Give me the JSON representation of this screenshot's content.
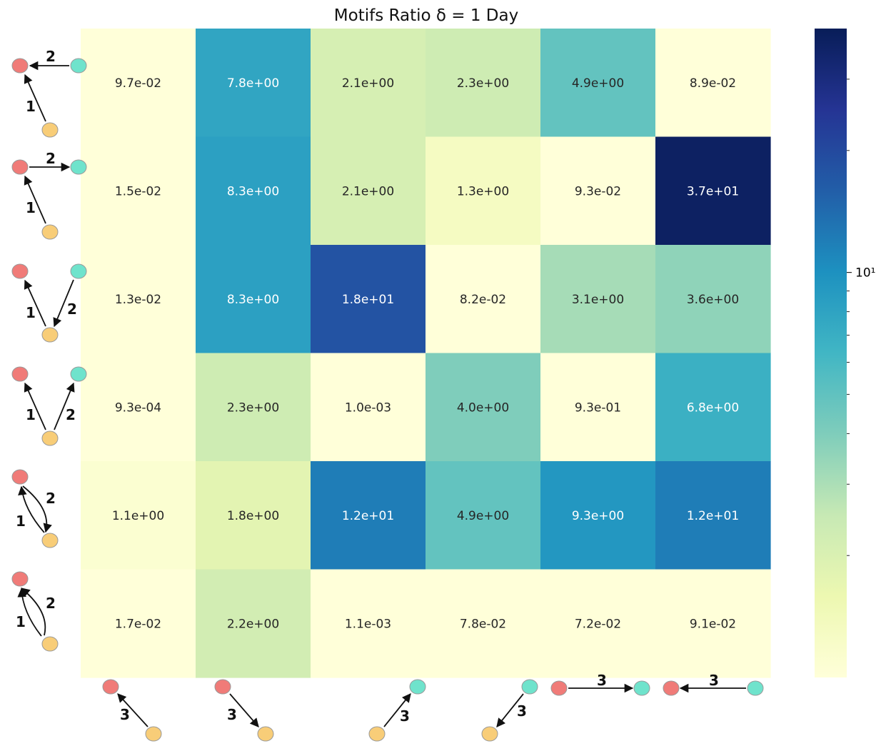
{
  "chart_data": {
    "type": "heatmap",
    "title": "Motifs Ratio  δ = 1 Day",
    "xlabel": "",
    "ylabel": "",
    "scale": "log",
    "colormap": "YlGnBu",
    "rows": 6,
    "cols": 6,
    "row_labels": [
      {
        "icon": "motif-diagram-icon",
        "edge_labels": [
          "2",
          "1"
        ]
      },
      {
        "icon": "motif-diagram-icon",
        "edge_labels": [
          "2",
          "1"
        ]
      },
      {
        "icon": "motif-diagram-icon",
        "edge_labels": [
          "1",
          "2"
        ]
      },
      {
        "icon": "motif-diagram-icon",
        "edge_labels": [
          "1",
          "2"
        ]
      },
      {
        "icon": "motif-diagram-icon",
        "edge_labels": [
          "2",
          "1"
        ]
      },
      {
        "icon": "motif-diagram-icon",
        "edge_labels": [
          "2",
          "1"
        ]
      }
    ],
    "col_labels": [
      {
        "icon": "motif-diagram-icon",
        "edge_labels": [
          "3"
        ]
      },
      {
        "icon": "motif-diagram-icon",
        "edge_labels": [
          "3"
        ]
      },
      {
        "icon": "motif-diagram-icon",
        "edge_labels": [
          "3"
        ]
      },
      {
        "icon": "motif-diagram-icon",
        "edge_labels": [
          "3"
        ]
      },
      {
        "icon": "motif-diagram-icon",
        "edge_labels": [
          "3"
        ]
      },
      {
        "icon": "motif-diagram-icon",
        "edge_labels": [
          "3"
        ]
      }
    ],
    "values": [
      [
        0.097,
        7.8,
        2.1,
        2.3,
        4.9,
        0.089
      ],
      [
        0.015,
        8.3,
        2.1,
        1.3,
        0.093,
        37
      ],
      [
        0.013,
        8.3,
        18,
        0.082,
        3.1,
        3.6
      ],
      [
        0.00093,
        2.3,
        0.001,
        4.0,
        0.93,
        6.8
      ],
      [
        1.1,
        1.8,
        12,
        4.9,
        9.3,
        12
      ],
      [
        0.017,
        2.2,
        0.0011,
        0.078,
        0.072,
        0.091
      ]
    ],
    "annotations": [
      [
        "9.7e-02",
        "7.8e+00",
        "2.1e+00",
        "2.3e+00",
        "4.9e+00",
        "8.9e-02"
      ],
      [
        "1.5e-02",
        "8.3e+00",
        "2.1e+00",
        "1.3e+00",
        "9.3e-02",
        "3.7e+01"
      ],
      [
        "1.3e-02",
        "8.3e+00",
        "1.8e+01",
        "8.2e-02",
        "3.1e+00",
        "3.6e+00"
      ],
      [
        "9.3e-04",
        "2.3e+00",
        "1.0e-03",
        "4.0e+00",
        "9.3e-01",
        "6.8e+00"
      ],
      [
        "1.1e+00",
        "1.8e+00",
        "1.2e+01",
        "4.9e+00",
        "9.3e+00",
        "1.2e+01"
      ],
      [
        "1.7e-02",
        "2.2e+00",
        "1.1e-03",
        "7.8e-02",
        "7.2e-02",
        "9.1e-02"
      ]
    ],
    "colorbar": {
      "range": [
        1,
        40
      ],
      "major_tick_label": "10¹",
      "major_tick_value": 10
    },
    "colors": {
      "node_red": "#f07b78",
      "node_teal": "#6fe3cc",
      "node_yellow": "#f8cd78",
      "text_dark": "#262626",
      "text_light": "#ffffff"
    }
  }
}
